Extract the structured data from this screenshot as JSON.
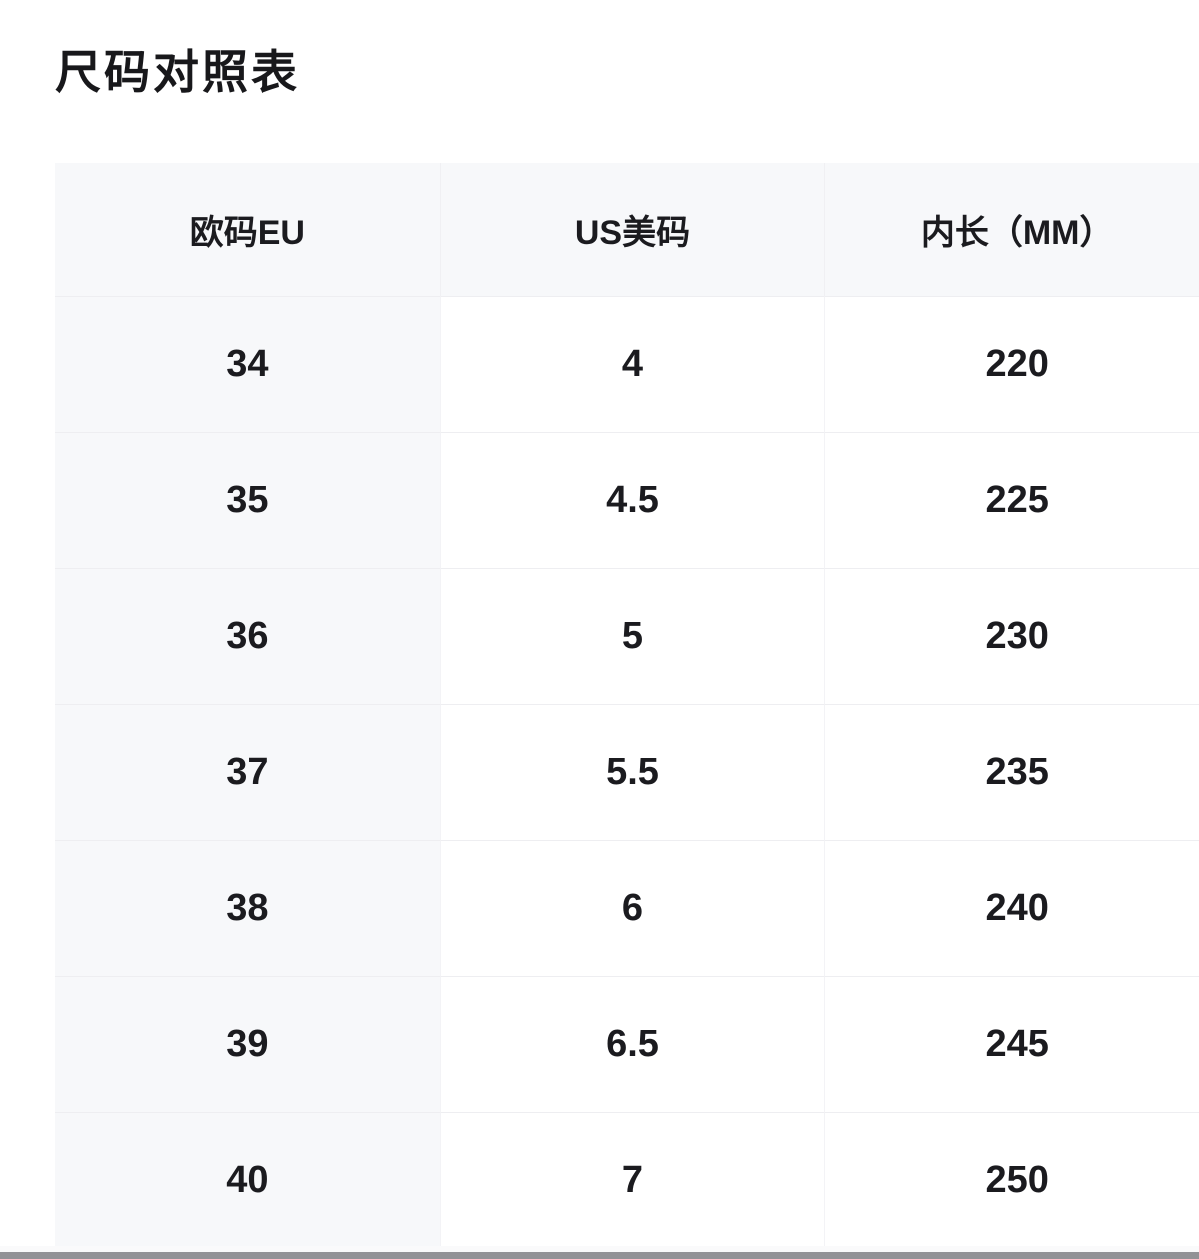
{
  "page": {
    "title": "尺码对照表"
  },
  "size_chart": {
    "columns": [
      "欧码EU",
      "US美码",
      "内长（MM）"
    ],
    "rows": [
      [
        "34",
        "4",
        "220"
      ],
      [
        "35",
        "4.5",
        "225"
      ],
      [
        "36",
        "5",
        "230"
      ],
      [
        "37",
        "5.5",
        "235"
      ],
      [
        "38",
        "6",
        "240"
      ],
      [
        "39",
        "6.5",
        "245"
      ],
      [
        "40",
        "7",
        "250"
      ]
    ]
  },
  "chart_data": {
    "type": "table",
    "title": "尺码对照表",
    "columns": [
      "欧码EU",
      "US美码",
      "内长（MM）"
    ],
    "rows": [
      [
        34,
        4,
        220
      ],
      [
        35,
        4.5,
        225
      ],
      [
        36,
        5,
        230
      ],
      [
        37,
        5.5,
        235
      ],
      [
        38,
        6,
        240
      ],
      [
        39,
        6.5,
        245
      ],
      [
        40,
        7,
        250
      ]
    ]
  },
  "colors": {
    "header_bg": "#f7f8fa",
    "first_column_bg": "#f7f8fa",
    "row_divider": "#eeeef1",
    "column_divider": "#f0f0f3",
    "text": "#1b1b1f",
    "bottom_bar": "#929296",
    "page_bg": "#ffffff"
  }
}
